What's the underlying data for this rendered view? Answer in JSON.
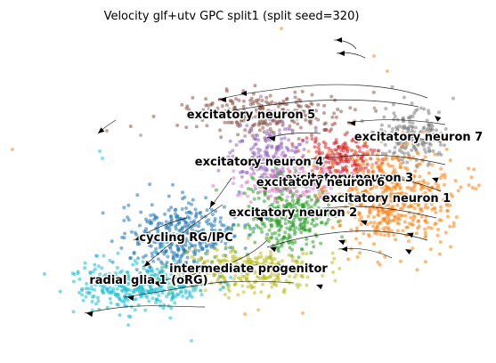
{
  "chart_data": {
    "type": "scatter",
    "title": "Velocity glf+utv GPC split1 (split seed=320)",
    "xlabel": "",
    "ylabel": "",
    "axes_visible": false,
    "grid": false,
    "legend": "on-data labels",
    "overlay": "velocity streamlines with arrowheads",
    "clusters": [
      {
        "name": "excitatory neuron 5",
        "color": "#8c564b"
      },
      {
        "name": "excitatory neuron 7",
        "color": "#7f7f7f"
      },
      {
        "name": "excitatory neuron 4",
        "color": "#9467bd"
      },
      {
        "name": "excitatory neuron 3",
        "color": "#d62728"
      },
      {
        "name": "excitatory neuron 6",
        "color": "#e377c2"
      },
      {
        "name": "excitatory neuron 1",
        "color": "#ff7f0e"
      },
      {
        "name": "excitatory neuron 2",
        "color": "#2ca02c"
      },
      {
        "name": "cycling RG/IPC",
        "color": "#1f77b4"
      },
      {
        "name": "intermediate progenitor",
        "color": "#bcbd22"
      },
      {
        "name": "radial glia 1 (oRG)",
        "color": "#17becf"
      }
    ]
  }
}
